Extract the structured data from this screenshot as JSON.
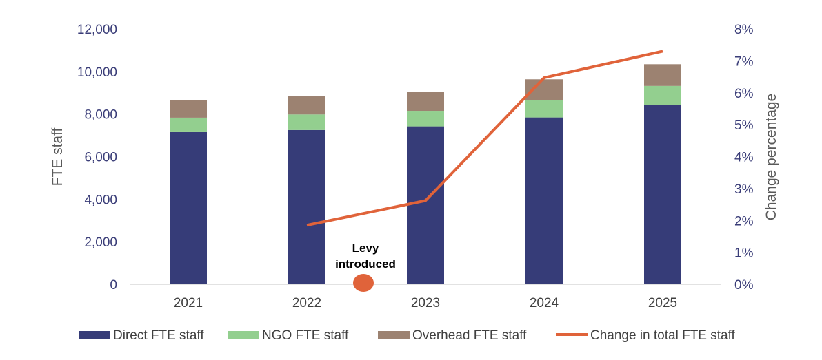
{
  "chart_data": {
    "type": "bar",
    "subtype": "stacked bar with line on secondary axis",
    "categories": [
      "2021",
      "2022",
      "2023",
      "2024",
      "2025"
    ],
    "series": [
      {
        "name": "Direct FTE staff",
        "type": "bar",
        "axis": "left",
        "color": "#363c78",
        "values": [
          7150,
          7250,
          7420,
          7840,
          8420
        ]
      },
      {
        "name": "NGO FTE staff",
        "type": "bar",
        "axis": "left",
        "color": "#93cf8f",
        "values": [
          680,
          730,
          730,
          820,
          900
        ]
      },
      {
        "name": "Overhead FTE staff",
        "type": "bar",
        "axis": "left",
        "color": "#9c8271",
        "values": [
          830,
          850,
          900,
          970,
          1020
        ]
      },
      {
        "name": "Change in total FTE staff",
        "type": "line",
        "axis": "right",
        "color": "#e0633a",
        "x": [
          "2022",
          "2023",
          "2024",
          "2025"
        ],
        "values": [
          1.85,
          2.62,
          6.47,
          7.3
        ]
      }
    ],
    "ylabel_left": "FTE staff",
    "ylabel_right": "Change percentage",
    "ylim_left": [
      0,
      12000
    ],
    "ylim_right": [
      0,
      8
    ],
    "yticks_left": [
      "0",
      "2,000",
      "4,000",
      "6,000",
      "8,000",
      "10,000",
      "12,000"
    ],
    "yticks_right": [
      "0%",
      "1%",
      "2%",
      "3%",
      "4%",
      "5%",
      "6%",
      "7%",
      "8%"
    ],
    "grid": false,
    "legend_position": "bottom",
    "annotation": {
      "line1": "Levy",
      "line2": "introduced",
      "marker_color": "#e0633a"
    }
  }
}
